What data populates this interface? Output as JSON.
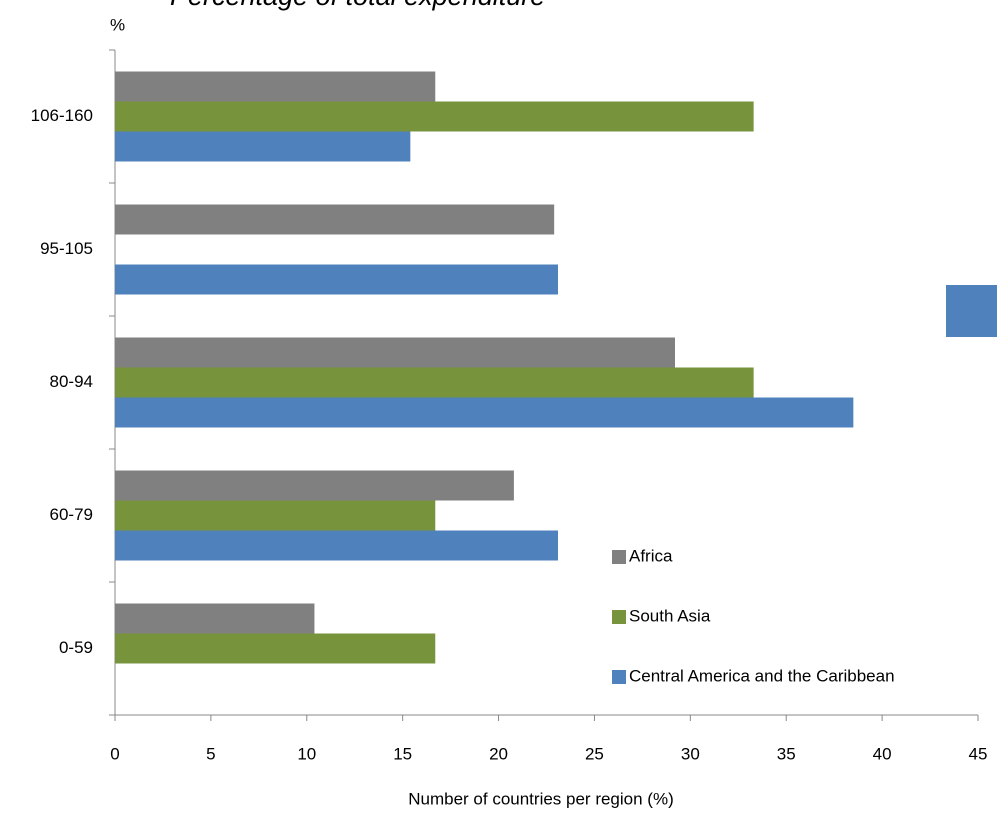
{
  "chart_data": {
    "type": "bar",
    "orientation": "horizontal",
    "title": "Percentage of total expenditure",
    "y_label": "%",
    "x_label": "Number of countries per region (%)",
    "categories": [
      "0-59",
      "60-79",
      "80-94",
      "95-105",
      "106-160"
    ],
    "series": [
      {
        "name": "Africa",
        "color": "#808080",
        "values": [
          10.4,
          20.8,
          29.2,
          22.9,
          16.7
        ]
      },
      {
        "name": "South Asia",
        "color": "#77933c",
        "values": [
          16.7,
          16.7,
          33.3,
          null,
          33.3
        ]
      },
      {
        "name": "Central America and the Caribbean",
        "color": "#4f81bd",
        "values": [
          null,
          23.1,
          38.5,
          23.1,
          15.4
        ]
      }
    ],
    "xlim": [
      0,
      45
    ],
    "xticks": [
      0,
      5,
      10,
      15,
      20,
      25,
      30,
      35,
      40,
      45
    ],
    "legend": "bottom-right"
  }
}
